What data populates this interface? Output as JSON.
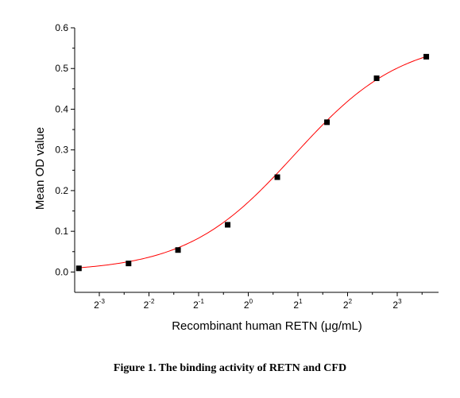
{
  "caption": "Figure 1. The binding activity of RETN and CFD",
  "chart_data": {
    "type": "scatter",
    "xlabel": "Recombinant human RETN (μg/mL)",
    "ylabel": "Mean OD value",
    "x_scale": "log2",
    "x_ticks": [
      {
        "base": "2",
        "exp": "-3"
      },
      {
        "base": "2",
        "exp": "-2"
      },
      {
        "base": "2",
        "exp": "-1"
      },
      {
        "base": "2",
        "exp": "0"
      },
      {
        "base": "2",
        "exp": "1"
      },
      {
        "base": "2",
        "exp": "2"
      },
      {
        "base": "2",
        "exp": "3"
      }
    ],
    "y_ticks": [
      "0.0",
      "0.1",
      "0.2",
      "0.3",
      "0.4",
      "0.5",
      "0.6"
    ],
    "ylim": [
      -0.05,
      0.6
    ],
    "grid": false,
    "points": [
      {
        "x": 0.094,
        "y": 0.009
      },
      {
        "x": 0.188,
        "y": 0.021
      },
      {
        "x": 0.375,
        "y": 0.054
      },
      {
        "x": 0.75,
        "y": 0.116
      },
      {
        "x": 1.5,
        "y": 0.233
      },
      {
        "x": 3,
        "y": 0.368
      },
      {
        "x": 6,
        "y": 0.476
      },
      {
        "x": 12,
        "y": 0.529
      }
    ],
    "fit": {
      "type": "4PL",
      "bottom": 0.0,
      "top": 0.575,
      "ec50": 1.9,
      "hill": 1.33
    },
    "marker_color": "#000000",
    "fit_color": "#ff0000"
  }
}
